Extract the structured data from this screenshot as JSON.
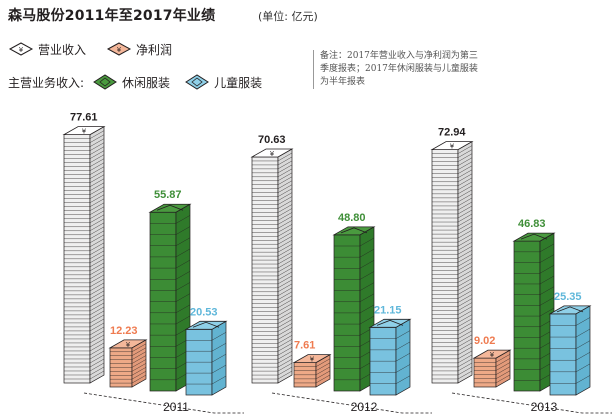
{
  "header": {
    "title": "森马股份2011年至2017年业绩",
    "unit": "(单位: 亿元)"
  },
  "legend": {
    "revenue": "营业收入",
    "net_profit": "净利润",
    "main_business_label": "主营业务收入:",
    "casual": "休闲服装",
    "children": "儿童服装"
  },
  "note": "备注：2017年营业收入与净利润为第三季度报表；2017年休闲服装与儿童服装为半年报表",
  "colors": {
    "revenue": "#ffffff",
    "net_profit": "#f4b79a",
    "casual": "#4a9a3f",
    "children": "#8fd0e8",
    "revenue_text": "#231f20",
    "net_profit_text": "#ef7b50",
    "casual_text": "#3f8f38",
    "children_text": "#5fb7da"
  },
  "icons": {
    "currency": "yuan-symbol-icon",
    "casual": "shirt-icon",
    "children": "kids-clothing-icon"
  },
  "chart_data": {
    "type": "bar",
    "categories": [
      "2011",
      "2012",
      "2013"
    ],
    "series": [
      {
        "name": "营业收入",
        "values": [
          77.61,
          70.63,
          72.94
        ]
      },
      {
        "name": "净利润",
        "values": [
          12.23,
          7.61,
          9.02
        ]
      },
      {
        "name": "休闲服装",
        "values": [
          55.87,
          48.8,
          46.83
        ]
      },
      {
        "name": "儿童服装",
        "values": [
          20.53,
          21.15,
          25.35
        ]
      }
    ],
    "value_labels": [
      [
        "77.61",
        "12.23",
        "55.87",
        "20.53"
      ],
      [
        "70.63",
        "7.61",
        "48.80",
        "21.15"
      ],
      [
        "72.94",
        "9.02",
        "46.83",
        "25.35"
      ]
    ],
    "ylim": [
      0,
      80
    ],
    "legend_position": "top-left"
  }
}
